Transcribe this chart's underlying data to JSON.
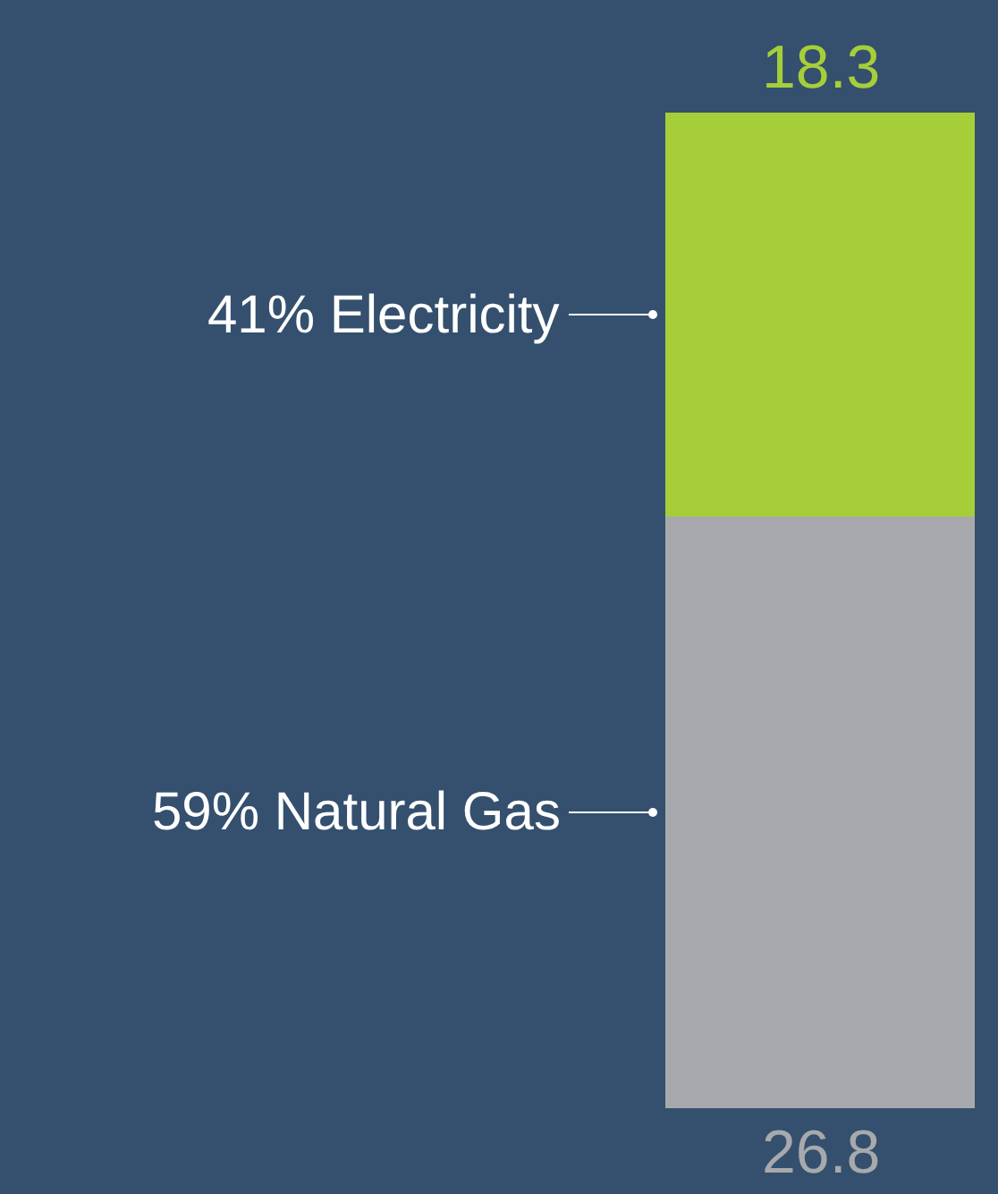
{
  "chart_data": {
    "type": "bar",
    "stacked": true,
    "categories": [
      null
    ],
    "data_labels": true,
    "series": [
      {
        "name": "59% Natural Gas",
        "color": "#a7a9ac",
        "values": [
          26.8
        ]
      },
      {
        "name": "41% Electricity",
        "color": "#a6ce39",
        "values": [
          18.3
        ]
      }
    ]
  }
}
